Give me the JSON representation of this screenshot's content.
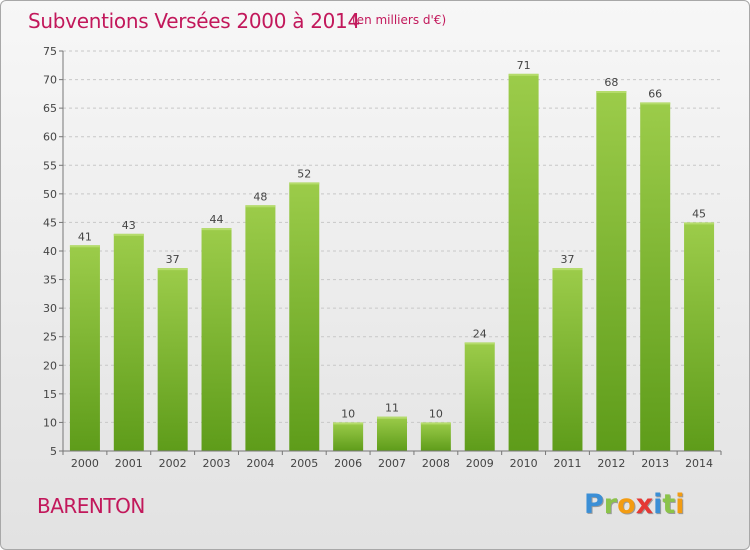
{
  "title": "Subventions Versées 2000 à 2014",
  "subtitle": "(en milliers d'€)",
  "commune": "BARENTON",
  "brand": {
    "letters": [
      {
        "ch": "P",
        "color": "#3b8fd6"
      },
      {
        "ch": "r",
        "color": "#8bc34a"
      },
      {
        "ch": "o",
        "color": "#f39c12"
      },
      {
        "ch": "x",
        "color": "#e53935"
      },
      {
        "ch": "i",
        "color": "#3b8fd6"
      },
      {
        "ch": "t",
        "color": "#8bc34a"
      },
      {
        "ch": "i",
        "color": "#f39c12"
      }
    ]
  },
  "chart_data": {
    "type": "bar",
    "categories": [
      "2000",
      "2001",
      "2002",
      "2003",
      "2004",
      "2005",
      "2006",
      "2007",
      "2008",
      "2009",
      "2010",
      "2011",
      "2012",
      "2013",
      "2014"
    ],
    "values": [
      41,
      43,
      37,
      44,
      48,
      52,
      10,
      11,
      10,
      24,
      71,
      37,
      68,
      66,
      45
    ],
    "ylim": [
      5,
      75
    ],
    "yticks": [
      5,
      10,
      15,
      20,
      25,
      30,
      35,
      40,
      45,
      50,
      55,
      60,
      65,
      70,
      75
    ],
    "grid": "horizontal dashed",
    "bar_color_top": "#9ccc4a",
    "bar_color_bottom": "#5e9c1a"
  }
}
